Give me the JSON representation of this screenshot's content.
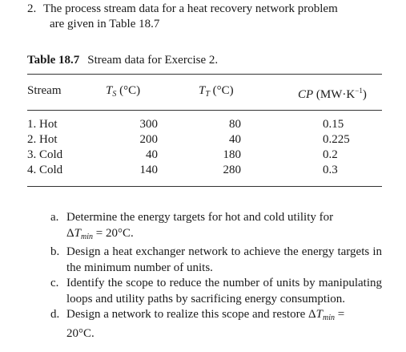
{
  "intro": {
    "number": "2.",
    "line1": "The process stream data for a heat recovery network problem",
    "line2": "are given in Table 18.7"
  },
  "table": {
    "label": "Table 18.7",
    "caption": "Stream data for Exercise 2.",
    "headers": {
      "stream": "Stream",
      "ts_symbol": "T",
      "ts_subscript": "S",
      "ts_unit": " (°C)",
      "tt_symbol": "T",
      "tt_subscript": "T",
      "tt_unit": " (°C)",
      "cp_symbol": "CP",
      "cp_unit_prefix": " (MW·K",
      "cp_unit_exp": "−1",
      "cp_unit_suffix": ")"
    },
    "rows": [
      {
        "stream": "1. Hot",
        "ts": "300",
        "tt": "80",
        "cp": "0.15"
      },
      {
        "stream": "2. Hot",
        "ts": "200",
        "tt": "40",
        "cp": "0.225"
      },
      {
        "stream": "3. Cold",
        "ts": "40",
        "tt": "180",
        "cp": "0.2"
      },
      {
        "stream": "4. Cold",
        "ts": "140",
        "tt": "280",
        "cp": "0.3"
      }
    ]
  },
  "questions": [
    {
      "letter": "a.",
      "text": "Determine the energy targets for hot and cold utility for",
      "delta_prefix": "Δ",
      "delta_symbol": "T",
      "delta_sub": "min",
      "delta_suffix": " = 20°C."
    },
    {
      "letter": "b.",
      "text": "Design a heat exchanger network to achieve the energy targets in the minimum number of units."
    },
    {
      "letter": "c.",
      "text": "Identify the scope to reduce the number of units by manipulating loops and utility paths by sacrificing energy consumption."
    },
    {
      "letter": "d.",
      "text": "Design a network to realize this scope and restore",
      "delta_prefix": " Δ",
      "delta_symbol": "T",
      "delta_sub": "min",
      "delta_suffix": " =",
      "tail": "20°C."
    }
  ]
}
